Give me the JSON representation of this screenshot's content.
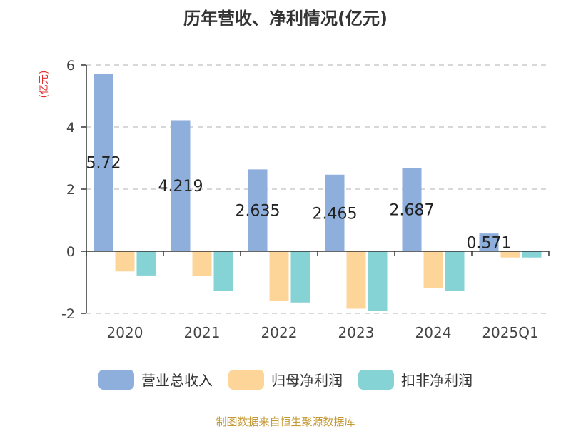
{
  "chart_data": {
    "type": "bar",
    "title": "历年营收、净利情况(亿元)",
    "ylabel": "(亿元)",
    "xlabel": "",
    "categories": [
      "2020",
      "2021",
      "2022",
      "2023",
      "2024",
      "2025Q1"
    ],
    "ylim": [
      -2,
      6
    ],
    "yticks": [
      "6",
      "4",
      "2",
      "0",
      "-2"
    ],
    "grid": true,
    "legend_position": "bottom",
    "series": [
      {
        "name": "营业总收入",
        "color": "#8eaedc",
        "values": [
          5.72,
          4.219,
          2.635,
          2.465,
          2.687,
          0.571
        ],
        "labels": [
          "5.72",
          "4.219",
          "2.635",
          "2.465",
          "2.687",
          "0.571"
        ]
      },
      {
        "name": "归母净利润",
        "color": "#fdd598",
        "values": [
          -0.65,
          -0.8,
          -1.6,
          -1.85,
          -1.18,
          -0.2
        ]
      },
      {
        "name": "扣非净利润",
        "color": "#86d3d6",
        "values": [
          -0.78,
          -1.27,
          -1.65,
          -1.92,
          -1.28,
          -0.2
        ]
      }
    ]
  },
  "footer": {
    "source": "制图数据来自恒生聚源数据库"
  }
}
